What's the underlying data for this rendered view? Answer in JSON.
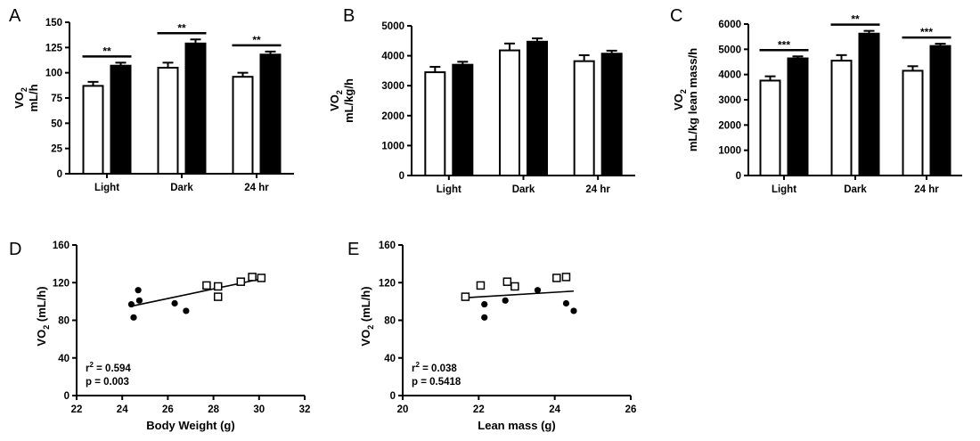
{
  "chart_data": [
    {
      "id": "A",
      "panel_label": "A",
      "type": "bar",
      "ylabel_main": "VO",
      "ylabel_sub": "2",
      "ylabel_unit": "mL/h",
      "categories": [
        "Light",
        "Dark",
        "24 hr"
      ],
      "ylim": [
        0,
        150
      ],
      "yticks": [
        "0",
        "25",
        "50",
        "75",
        "100",
        "125",
        "150"
      ],
      "series": [
        {
          "name": "open",
          "fill": "#ffffff",
          "values": [
            87,
            105,
            96
          ],
          "err": [
            4,
            5,
            4
          ]
        },
        {
          "name": "filled",
          "fill": "#000000",
          "values": [
            107,
            129,
            118
          ],
          "err": [
            3,
            4,
            3
          ]
        }
      ],
      "significance": [
        "**",
        "**",
        "**"
      ]
    },
    {
      "id": "B",
      "panel_label": "B",
      "type": "bar",
      "ylabel_main": "VO",
      "ylabel_sub": "2",
      "ylabel_unit": "mL/kg/h",
      "categories": [
        "Light",
        "Dark",
        "24 hr"
      ],
      "ylim": [
        0,
        5000
      ],
      "yticks": [
        "0",
        "1000",
        "2000",
        "3000",
        "4000",
        "5000"
      ],
      "series": [
        {
          "name": "open",
          "fill": "#ffffff",
          "values": [
            3450,
            4180,
            3820
          ],
          "err": [
            180,
            230,
            200
          ]
        },
        {
          "name": "filled",
          "fill": "#000000",
          "values": [
            3700,
            4470,
            4070
          ],
          "err": [
            100,
            110,
            100
          ]
        }
      ],
      "significance": [
        "",
        "",
        ""
      ]
    },
    {
      "id": "C",
      "panel_label": "C",
      "type": "bar",
      "ylabel_main": "VO",
      "ylabel_sub": "2",
      "ylabel_unit": "mL/kg lean mass/h",
      "categories": [
        "Light",
        "Dark",
        "24 hr"
      ],
      "ylim": [
        0,
        6000
      ],
      "yticks": [
        "0",
        "1000",
        "2000",
        "3000",
        "4000",
        "5000",
        "6000"
      ],
      "series": [
        {
          "name": "open",
          "fill": "#ffffff",
          "values": [
            3760,
            4550,
            4150
          ],
          "err": [
            170,
            220,
            180
          ]
        },
        {
          "name": "filled",
          "fill": "#000000",
          "values": [
            4640,
            5620,
            5130
          ],
          "err": [
            80,
            110,
            90
          ]
        }
      ],
      "significance": [
        "***",
        "**",
        "***"
      ]
    },
    {
      "id": "D",
      "panel_label": "D",
      "type": "scatter",
      "ylabel_main": "VO",
      "ylabel_sub": "2",
      "ylabel_unit": " (mL/h)",
      "xlabel": "Body Weight (g)",
      "xlim": [
        22,
        32
      ],
      "xticks": [
        "22",
        "24",
        "26",
        "28",
        "30",
        "32"
      ],
      "ylim": [
        0,
        160
      ],
      "yticks": [
        "0",
        "40",
        "80",
        "120",
        "160"
      ],
      "series": [
        {
          "name": "filled",
          "marker": "circle",
          "x": [
            24.4,
            24.5,
            24.7,
            24.75,
            26.3,
            26.8
          ],
          "y": [
            97,
            83,
            112,
            101,
            98,
            90
          ]
        },
        {
          "name": "open",
          "marker": "square",
          "x": [
            27.7,
            28.2,
            28.2,
            29.2,
            29.7,
            30.1
          ],
          "y": [
            117,
            116,
            105,
            121,
            126,
            125
          ]
        }
      ],
      "fit": {
        "x": [
          24.4,
          30.1
        ],
        "y": [
          95,
          124
        ]
      },
      "stats": {
        "r2_prefix": "r",
        "r2_sup": "2",
        "r2_value": " = 0.594",
        "p": "p = 0.003"
      }
    },
    {
      "id": "E",
      "panel_label": "E",
      "type": "scatter",
      "ylabel_main": "VO",
      "ylabel_sub": "2",
      "ylabel_unit": " (mL/h)",
      "xlabel": "Lean mass (g)",
      "xlim": [
        20,
        26
      ],
      "xticks": [
        "20",
        "22",
        "24",
        "26"
      ],
      "ylim": [
        0,
        160
      ],
      "yticks": [
        "0",
        "40",
        "80",
        "120",
        "160"
      ],
      "series": [
        {
          "name": "filled",
          "marker": "circle",
          "x": [
            22.15,
            22.15,
            22.7,
            23.55,
            24.3,
            24.5
          ],
          "y": [
            97,
            83,
            101,
            112,
            98,
            90
          ]
        },
        {
          "name": "open",
          "marker": "square",
          "x": [
            21.65,
            22.05,
            22.75,
            22.95,
            24.05,
            24.3
          ],
          "y": [
            105,
            117,
            121,
            116,
            125,
            126
          ]
        }
      ],
      "fit": {
        "x": [
          21.65,
          24.5
        ],
        "y": [
          104,
          111
        ]
      },
      "stats": {
        "r2_prefix": "r",
        "r2_sup": "2",
        "r2_value": " = 0.038",
        "p": "p = 0.5418"
      }
    }
  ]
}
